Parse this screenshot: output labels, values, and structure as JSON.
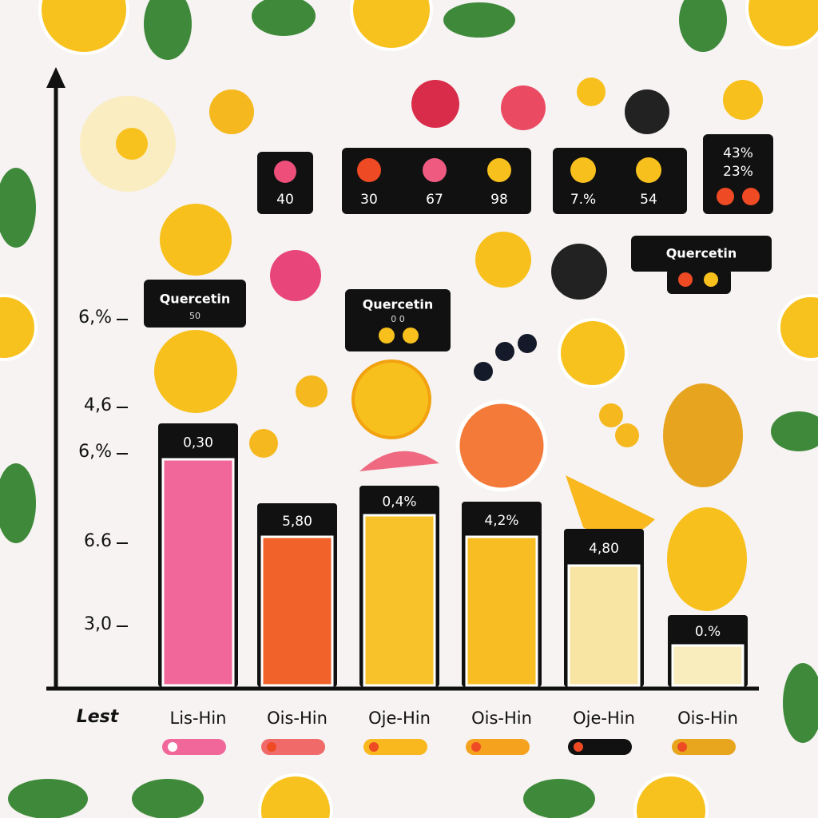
{
  "y_axis": {
    "labels": [
      "6,%",
      "4,6",
      "6,%",
      "6.6",
      "3,0"
    ]
  },
  "x_axis": {
    "title": "Lest",
    "categories": [
      "Lis-Hin",
      "Ois-Hin",
      "Oje-Hin",
      "Ois-Hin",
      "Oje-Hin",
      "Ois-Hin"
    ]
  },
  "bar_labels": [
    "0,30",
    "5,80",
    "0,4%",
    "4,2%",
    "4,80",
    "0.%"
  ],
  "callouts": [
    [
      "40"
    ],
    [
      "30",
      "67",
      "98"
    ],
    [
      "7.%",
      "54"
    ],
    [
      "43%",
      "23%"
    ]
  ],
  "quercetin_boxes": [
    {
      "title": "Quercetin",
      "note": "50"
    },
    {
      "title": "Quercetin",
      "note": "0 0"
    },
    {
      "title": "Quercetin"
    }
  ]
}
